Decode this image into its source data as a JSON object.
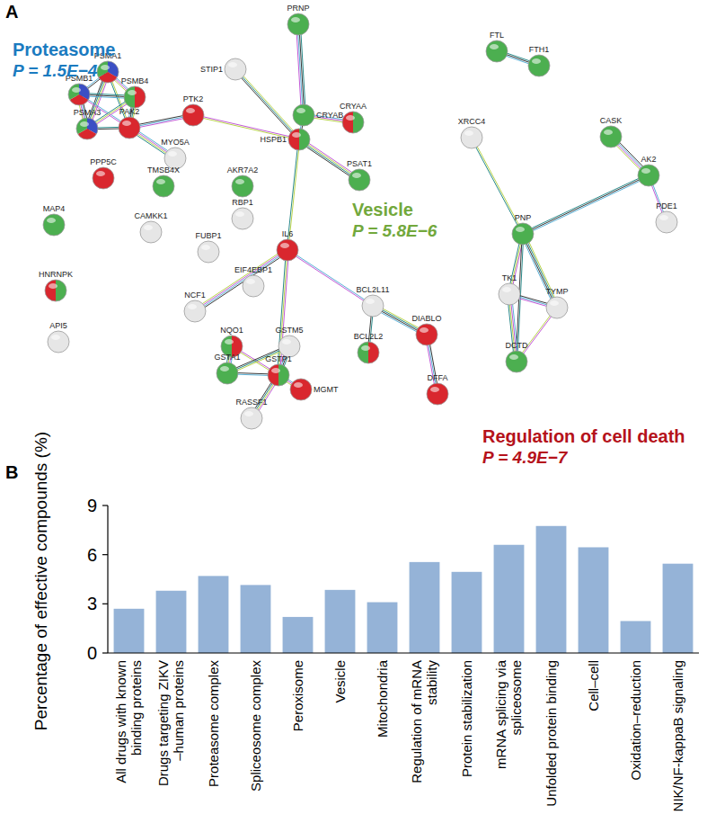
{
  "panel_labels": [
    "A",
    "B"
  ],
  "network": {
    "nodes": [
      {
        "label": "PSMA1",
        "colors": [
          "#3b4fc4",
          "#d9272e",
          "#4caf50"
        ]
      },
      {
        "label": "PSMB1",
        "colors": [
          "#3b4fc4",
          "#d9272e",
          "#4caf50"
        ]
      },
      {
        "label": "PSMB4",
        "colors": [
          "#d9272e",
          "#4caf50"
        ]
      },
      {
        "label": "PSMA3",
        "colors": [
          "#3b4fc4",
          "#d9272e",
          "#4caf50"
        ]
      },
      {
        "label": "PAK2",
        "colors": [
          "#d9272e"
        ]
      },
      {
        "label": "PTK2",
        "colors": [
          "#d9272e"
        ]
      },
      {
        "label": "MYO5A",
        "colors": [
          "#e6e6e6"
        ]
      },
      {
        "label": "PPP5C",
        "colors": [
          "#d9272e"
        ]
      },
      {
        "label": "TMSB4X",
        "colors": [
          "#4caf50"
        ]
      },
      {
        "label": "STIP1",
        "colors": [
          "#e6e6e6"
        ]
      },
      {
        "label": "PRNP",
        "colors": [
          "#4caf50"
        ]
      },
      {
        "label": "CRYAA",
        "colors": [
          "#4caf50",
          "#d9272e"
        ]
      },
      {
        "label": "CRYAB",
        "colors": [
          "#4caf50"
        ]
      },
      {
        "label": "HSPB1",
        "colors": [
          "#4caf50",
          "#d9272e"
        ]
      },
      {
        "label": "FTL",
        "colors": [
          "#4caf50"
        ]
      },
      {
        "label": "FTH1",
        "colors": [
          "#4caf50"
        ]
      },
      {
        "label": "PSAT1",
        "colors": [
          "#4caf50"
        ]
      },
      {
        "label": "AKR7A2",
        "colors": [
          "#4caf50"
        ]
      },
      {
        "label": "RBP1",
        "colors": [
          "#e6e6e6"
        ]
      },
      {
        "label": "MAP4",
        "colors": [
          "#4caf50"
        ]
      },
      {
        "label": "CAMKK1",
        "colors": [
          "#e6e6e6"
        ]
      },
      {
        "label": "FUBP1",
        "colors": [
          "#e6e6e6"
        ]
      },
      {
        "label": "IL6",
        "colors": [
          "#d9272e"
        ]
      },
      {
        "label": "EIF4EBP1",
        "colors": [
          "#e6e6e6"
        ]
      },
      {
        "label": "NCF1",
        "colors": [
          "#e6e6e6"
        ]
      },
      {
        "label": "HNRNPK",
        "colors": [
          "#4caf50",
          "#d9272e"
        ]
      },
      {
        "label": "API5",
        "colors": [
          "#e6e6e6"
        ]
      },
      {
        "label": "NQO1",
        "colors": [
          "#d9272e",
          "#4caf50"
        ]
      },
      {
        "label": "GSTM5",
        "colors": [
          "#e6e6e6"
        ]
      },
      {
        "label": "GSTA1",
        "colors": [
          "#4caf50"
        ]
      },
      {
        "label": "GSTP1",
        "colors": [
          "#4caf50",
          "#d9272e"
        ]
      },
      {
        "label": "MGMT",
        "colors": [
          "#d9272e"
        ]
      },
      {
        "label": "RASSF1",
        "colors": [
          "#e6e6e6"
        ]
      },
      {
        "label": "BCL2L11",
        "colors": [
          "#e6e6e6"
        ]
      },
      {
        "label": "BCL2L2",
        "colors": [
          "#d9272e",
          "#4caf50"
        ]
      },
      {
        "label": "DIABLO",
        "colors": [
          "#d9272e"
        ]
      },
      {
        "label": "DFFA",
        "colors": [
          "#d9272e"
        ]
      },
      {
        "label": "XRCC4",
        "colors": [
          "#e6e6e6"
        ]
      },
      {
        "label": "CASK",
        "colors": [
          "#4caf50"
        ]
      },
      {
        "label": "AK2",
        "colors": [
          "#4caf50"
        ]
      },
      {
        "label": "PDE1",
        "colors": [
          "#e6e6e6"
        ]
      },
      {
        "label": "PNP",
        "colors": [
          "#4caf50"
        ]
      },
      {
        "label": "TK1",
        "colors": [
          "#e6e6e6"
        ]
      },
      {
        "label": "TYMP",
        "colors": [
          "#e6e6e6"
        ]
      },
      {
        "label": "DCTD",
        "colors": [
          "#4caf50"
        ]
      }
    ],
    "edges": [
      [
        0,
        1
      ],
      [
        0,
        2
      ],
      [
        0,
        3
      ],
      [
        0,
        4
      ],
      [
        1,
        2
      ],
      [
        1,
        3
      ],
      [
        1,
        4
      ],
      [
        2,
        3
      ],
      [
        2,
        4
      ],
      [
        3,
        4
      ],
      [
        4,
        5
      ],
      [
        4,
        6
      ],
      [
        5,
        13
      ],
      [
        9,
        13
      ],
      [
        10,
        12
      ],
      [
        12,
        13
      ],
      [
        12,
        11
      ],
      [
        13,
        16
      ],
      [
        13,
        22
      ],
      [
        14,
        15
      ],
      [
        22,
        24
      ],
      [
        22,
        33
      ],
      [
        22,
        30
      ],
      [
        33,
        35
      ],
      [
        33,
        34
      ],
      [
        35,
        36
      ],
      [
        27,
        29
      ],
      [
        27,
        30
      ],
      [
        28,
        29
      ],
      [
        28,
        30
      ],
      [
        29,
        30
      ],
      [
        30,
        31
      ],
      [
        30,
        32
      ],
      [
        37,
        41
      ],
      [
        41,
        39
      ],
      [
        38,
        39
      ],
      [
        39,
        40
      ],
      [
        41,
        42
      ],
      [
        41,
        43
      ],
      [
        41,
        44
      ],
      [
        42,
        43
      ],
      [
        42,
        44
      ],
      [
        43,
        44
      ]
    ],
    "annotations": [
      {
        "label": "Proteasome",
        "p": "P = 1.5E−4",
        "color": "#1b7bc0"
      },
      {
        "label": "Vesicle",
        "p": "P = 5.8E−6",
        "color": "#72a83c"
      },
      {
        "label": "Regulation of cell death",
        "p": "P = 4.9E−7",
        "color": "#b5121b"
      }
    ]
  },
  "chart_data": {
    "type": "bar",
    "ylabel": "Percentage of effective compounds (%)",
    "categories": [
      "All drugs with known\nbinding proteins",
      "Drugs targeting ZIKV\n–human proteins",
      "Proteasome complex",
      "Spliceosome complex",
      "Peroxisome",
      "Vesicle",
      "Mitochondria",
      "Regulation of mRNA\nstability",
      "Protein stabilization",
      "mRNA splicing via\nspliceosome",
      "Unfolded protein binding",
      "Cell–cell",
      "Oxidation–reduction",
      "NIK/NF-kappaB signaling"
    ],
    "values": [
      2.7,
      3.8,
      4.7,
      4.15,
      2.2,
      3.85,
      3.1,
      5.55,
      4.95,
      6.6,
      7.75,
      6.45,
      1.95,
      5.45
    ],
    "color": "#95b3d7",
    "ylim": [
      0,
      9
    ],
    "yticks": [
      0,
      3,
      6,
      9
    ]
  }
}
